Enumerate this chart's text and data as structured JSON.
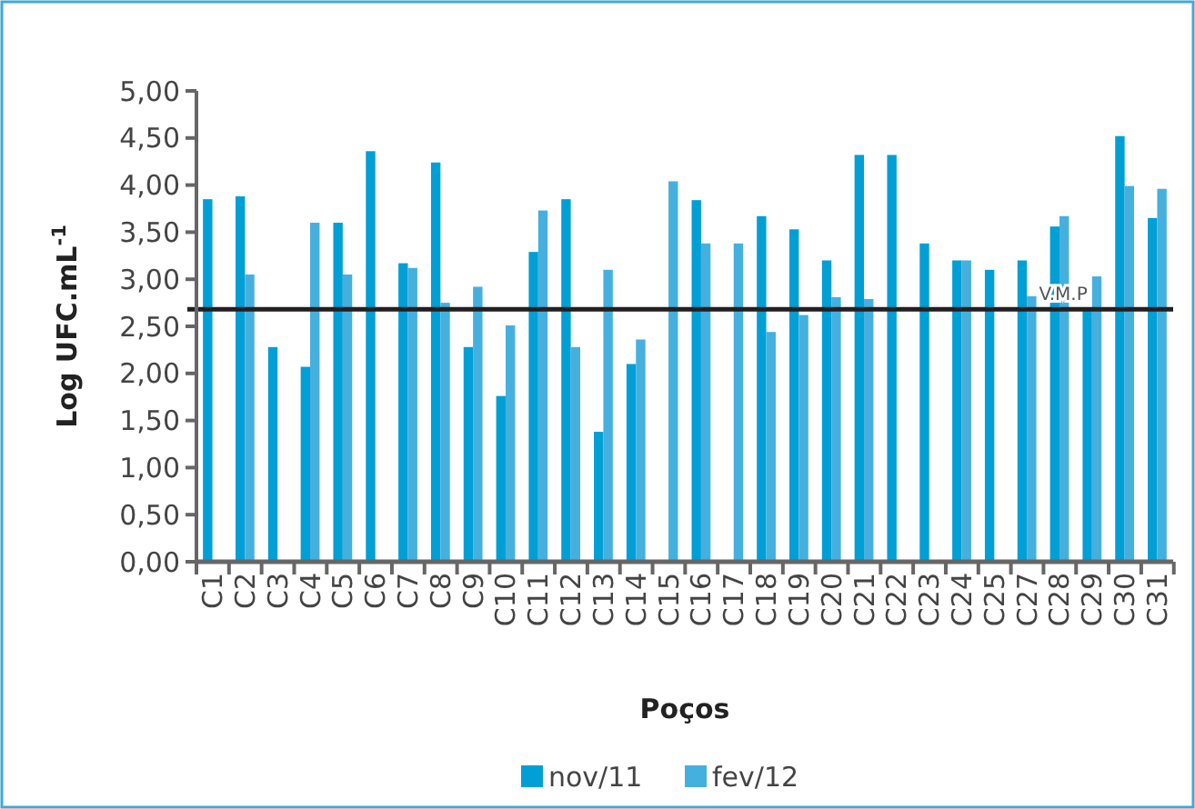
{
  "chart_data": {
    "type": "bar",
    "xlabel": "Poços",
    "ylabel": "Log UFC.mL$^{-1}$",
    "categories": [
      "C1",
      "C2",
      "C3",
      "C4",
      "C5",
      "C6",
      "C7",
      "C8",
      "C9",
      "C10",
      "C11",
      "C12",
      "C13",
      "C14",
      "C15",
      "C16",
      "C17",
      "C18",
      "C19",
      "C20",
      "C21",
      "C22",
      "C23",
      "C24",
      "C25",
      "C27",
      "C28",
      "C29",
      "C30",
      "C31"
    ],
    "series": [
      {
        "name": "nov/11",
        "color": "#009fd6",
        "values": [
          3.85,
          3.88,
          2.28,
          2.07,
          3.6,
          4.36,
          3.17,
          4.24,
          2.28,
          1.76,
          3.29,
          3.85,
          1.38,
          2.1,
          null,
          3.84,
          null,
          3.67,
          3.53,
          3.2,
          4.32,
          4.32,
          3.38,
          3.2,
          3.1,
          3.2,
          3.56,
          2.68,
          4.52,
          3.65
        ]
      },
      {
        "name": "fev/12",
        "color": "#45b0de",
        "values": [
          null,
          3.05,
          null,
          3.6,
          3.05,
          null,
          3.12,
          2.75,
          2.92,
          2.51,
          3.73,
          2.28,
          3.1,
          2.36,
          4.04,
          3.38,
          3.38,
          2.44,
          2.62,
          2.81,
          2.79,
          null,
          null,
          3.2,
          null,
          2.82,
          3.67,
          3.03,
          3.99,
          3.96
        ]
      }
    ],
    "ylim": [
      0,
      5
    ],
    "yticks": [
      {
        "value": 0,
        "label": "0,00"
      },
      {
        "value": 0.5,
        "label": "0,50"
      },
      {
        "value": 1,
        "label": "1,00"
      },
      {
        "value": 1.5,
        "label": "1,50"
      },
      {
        "value": 2,
        "label": "2,00"
      },
      {
        "value": 2.5,
        "label": "2,50"
      },
      {
        "value": 3,
        "label": "3,00"
      },
      {
        "value": 3.5,
        "label": "3,50"
      },
      {
        "value": 4,
        "label": "4,00"
      },
      {
        "value": 4.5,
        "label": "4,50"
      },
      {
        "value": 5,
        "label": "5,00"
      }
    ],
    "ref_lines": [
      {
        "axis": "y",
        "value": 2.68,
        "label": "V.M.P",
        "color": "#231f20"
      }
    ],
    "legend": "bottom",
    "grid": false
  }
}
